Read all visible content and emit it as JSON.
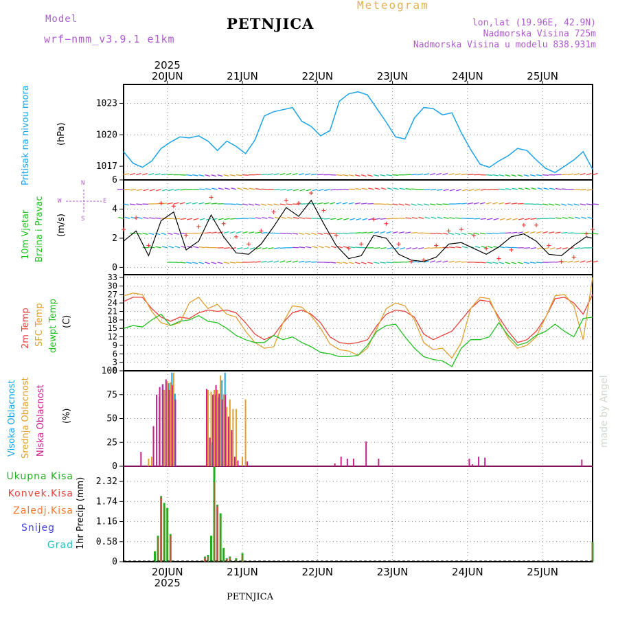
{
  "header": {
    "model_label": "Model",
    "model_name": "wrf−nmm_v3.9.1  e1km",
    "station": "PETNJICA",
    "chart_kind": "Meteogram",
    "lonlat": "lon,lat (19.96E, 42.9N)",
    "altitude": "Nadmorska Visina 725m",
    "model_altitude": "Nadmorska Visina u modelu 838.931m",
    "footer_station": "PETNJICA",
    "credit": "made by Angel"
  },
  "time_axis": {
    "year": "2025",
    "days": [
      "20JUN",
      "21JUN",
      "22JUN",
      "23JUN",
      "24JUN",
      "25JUN"
    ],
    "hours_per_day": 24,
    "start_hour_offset": -14,
    "end_hour_offset": 136
  },
  "colors": {
    "pressure": "#1aa3e8",
    "temp2m": "#e8413a",
    "sfc": "#e0a030",
    "dewpt": "#22c022",
    "wind_speed": "#000000",
    "gust": "#e8413a",
    "high_cloud": "#1aa3e8",
    "mid_cloud": "#e0a030",
    "low_cloud": "#cc1d8a",
    "total_precip": "#22b022",
    "conv_precip": "#e8413a",
    "frozen": "#f07a30",
    "snow": "#4444dd",
    "hail": "#22c0c0"
  },
  "panels": {
    "pressure": {
      "label": "Pritisak na nivou mora",
      "unit": "(hPa)",
      "ticks": [
        "1017",
        "1020",
        "1023"
      ]
    },
    "wind": {
      "label1": "10m Vjetar",
      "label2": "Brzina i Pravac",
      "unit": "(m/s)",
      "ticks": [
        "0",
        "2",
        "4",
        "6"
      ],
      "compass": {
        "n": "N",
        "s": "S",
        "w": "W",
        "e": "E"
      }
    },
    "temp": {
      "label1": "2m Temp",
      "label2": "SFC Temp",
      "label3": "dewpt Temp",
      "unit": "(C)",
      "ticks": [
        "0",
        "3",
        "6",
        "9",
        "12",
        "15",
        "18",
        "21",
        "24",
        "27",
        "30",
        "33"
      ]
    },
    "cloud": {
      "label1": "Visoka Oblacnost",
      "label2": "Srednja Oblacnost",
      "label3": "Niska Oblacnost",
      "unit": "(%)",
      "ticks": [
        "0",
        "25",
        "50",
        "75",
        "100"
      ]
    },
    "precip": {
      "legend": [
        "Ukupna Kisa",
        "Konvek.Kisa",
        "Zaledj.Kisa",
        "Snijeg",
        "Grad"
      ],
      "unit": "1hr Precip (mm)",
      "ticks": [
        "0",
        "0.58",
        "1.16",
        "1.74",
        "2.32"
      ]
    }
  },
  "chart_data": [
    {
      "type": "line",
      "title": "Pritisak na nivou mora",
      "ylabel": "(hPa)",
      "ylim": [
        1015.7,
        1024.8
      ],
      "x_unit": "hours since 20JUN 00",
      "series": [
        {
          "name": "Pritisak na nivou mora",
          "x": [
            -14,
            -11,
            -8,
            -5,
            -2,
            1,
            4,
            7,
            10,
            13,
            16,
            19,
            22,
            25,
            28,
            31,
            34,
            37,
            40,
            43,
            46,
            49,
            52,
            55,
            58,
            61,
            64,
            67,
            70,
            73,
            76,
            79,
            82,
            85,
            88,
            91,
            94,
            97,
            100,
            103,
            106,
            109,
            112,
            115,
            118,
            121,
            124,
            127,
            130,
            133,
            136
          ],
          "values": [
            1018.4,
            1017.3,
            1016.9,
            1017.5,
            1018.7,
            1019.3,
            1019.8,
            1019.7,
            1019.9,
            1019.4,
            1018.5,
            1019.4,
            1018.9,
            1018.2,
            1019.5,
            1021.8,
            1022.2,
            1022.4,
            1022.6,
            1021.3,
            1020.8,
            1019.9,
            1020.4,
            1023.2,
            1023.9,
            1024.1,
            1023.8,
            1022.5,
            1021.2,
            1019.8,
            1019.6,
            1021.6,
            1022.6,
            1022.5,
            1021.9,
            1022.1,
            1020.2,
            1018.6,
            1017.2,
            1016.9,
            1017.5,
            1018.0,
            1018.7,
            1018.5,
            1017.6,
            1016.8,
            1016.4,
            1017.0,
            1017.6,
            1018.4,
            1016.7
          ]
        }
      ]
    },
    {
      "type": "line",
      "title": "10m Vjetar Brzina i Pravac",
      "ylabel": "(m/s)",
      "ylim": [
        -0.5,
        6
      ],
      "x_unit": "hours since 20JUN 00",
      "series": [
        {
          "name": "Brzina",
          "x": [
            -14,
            -10,
            -6,
            -2,
            2,
            6,
            10,
            14,
            18,
            22,
            26,
            30,
            34,
            38,
            42,
            46,
            50,
            54,
            58,
            62,
            66,
            70,
            74,
            78,
            82,
            86,
            90,
            94,
            98,
            102,
            106,
            110,
            114,
            118,
            122,
            126,
            130,
            134,
            136
          ],
          "values": [
            1.8,
            2.5,
            0.8,
            3.2,
            3.8,
            1.2,
            1.8,
            3.6,
            2.1,
            1.0,
            0.9,
            1.6,
            2.8,
            4.1,
            3.5,
            4.6,
            3.0,
            1.5,
            0.6,
            0.8,
            2.2,
            2.0,
            0.9,
            0.5,
            0.4,
            0.7,
            1.6,
            1.7,
            1.3,
            0.9,
            1.4,
            2.1,
            2.3,
            1.8,
            0.9,
            0.8,
            1.5,
            2.1,
            2.0
          ]
        },
        {
          "name": "Udari",
          "x": [
            -14,
            -10,
            -6,
            -2,
            2,
            6,
            10,
            14,
            18,
            22,
            26,
            30,
            34,
            38,
            42,
            46,
            50,
            54,
            58,
            62,
            66,
            70,
            74,
            78,
            82,
            86,
            90,
            94,
            98,
            102,
            106,
            110,
            114,
            118,
            122,
            126,
            130,
            134,
            136
          ],
          "values": [
            2.6,
            3.4,
            1.5,
            4.4,
            4.2,
            2.2,
            2.8,
            4.8,
            3.0,
            2.1,
            1.6,
            2.5,
            3.8,
            4.6,
            4.4,
            5.1,
            3.9,
            2.2,
            1.3,
            1.6,
            3.3,
            3.0,
            1.6,
            0.4,
            0.5,
            1.5,
            2.5,
            2.6,
            2.2,
            1.3,
            0.6,
            1.2,
            2.9,
            2.9,
            1.5,
            0.4,
            0.7,
            2.3,
            2.6
          ]
        }
      ]
    },
    {
      "type": "line",
      "title": "2m / SFC / dewpt Temp",
      "ylabel": "(C)",
      "ylim": [
        0,
        34
      ],
      "x_unit": "hours since 20JUN 00",
      "series": [
        {
          "name": "2m Temp",
          "x": [
            -14,
            -11,
            -8,
            -5,
            -2,
            1,
            4,
            7,
            10,
            13,
            16,
            19,
            22,
            25,
            28,
            31,
            34,
            37,
            40,
            43,
            46,
            49,
            52,
            55,
            58,
            61,
            64,
            67,
            70,
            73,
            76,
            79,
            82,
            85,
            88,
            91,
            94,
            97,
            100,
            103,
            106,
            109,
            112,
            115,
            118,
            121,
            124,
            127,
            130,
            133,
            136
          ],
          "values": [
            24.5,
            26,
            26,
            22,
            19,
            17.5,
            19,
            18.5,
            20.5,
            21.5,
            21,
            21.5,
            20.5,
            17,
            13,
            11,
            12.5,
            17,
            20.5,
            21.5,
            20,
            17,
            12,
            10,
            9.5,
            10,
            11,
            16,
            20,
            21.5,
            21,
            19,
            13,
            11,
            12.5,
            14,
            18,
            22,
            25,
            24.5,
            19,
            14,
            10,
            11,
            14,
            19,
            25.5,
            26,
            24,
            20,
            27
          ]
        },
        {
          "name": "SFC Temp",
          "x": [
            -14,
            -11,
            -8,
            -5,
            -2,
            1,
            4,
            7,
            10,
            13,
            16,
            19,
            22,
            25,
            28,
            31,
            34,
            37,
            40,
            43,
            46,
            49,
            52,
            55,
            58,
            61,
            64,
            67,
            70,
            73,
            76,
            79,
            82,
            85,
            88,
            91,
            94,
            97,
            100,
            103,
            106,
            109,
            112,
            115,
            118,
            121,
            124,
            127,
            130,
            133,
            136
          ],
          "values": [
            26.5,
            27.5,
            27,
            21,
            17,
            16,
            17,
            24,
            26,
            22,
            23.5,
            20,
            19,
            14,
            10,
            8,
            8.5,
            17,
            23,
            22.5,
            19.5,
            15,
            9.5,
            7.5,
            7,
            5.5,
            8,
            15,
            22,
            24,
            23,
            18,
            10,
            7.5,
            8,
            4.5,
            10,
            22,
            26,
            25.5,
            18,
            11.5,
            8,
            9,
            12,
            19,
            26.5,
            27,
            23,
            11,
            33
          ]
        },
        {
          "name": "dewpt Temp",
          "x": [
            -14,
            -11,
            -8,
            -5,
            -2,
            1,
            4,
            7,
            10,
            13,
            16,
            19,
            22,
            25,
            28,
            31,
            34,
            37,
            40,
            43,
            46,
            49,
            52,
            55,
            58,
            61,
            64,
            67,
            70,
            73,
            76,
            79,
            82,
            85,
            88,
            91,
            94,
            97,
            100,
            103,
            106,
            109,
            112,
            115,
            118,
            121,
            124,
            127,
            130,
            133,
            136
          ],
          "values": [
            15,
            16,
            15.5,
            18,
            20,
            16,
            17.5,
            18,
            19.5,
            17.5,
            17,
            15,
            12.5,
            11,
            10,
            10,
            12.5,
            11,
            12,
            10,
            8.5,
            6.5,
            6,
            5,
            5,
            5.5,
            9,
            14,
            16,
            16.5,
            12,
            8,
            5,
            4,
            3.5,
            1.5,
            8,
            11,
            11,
            12,
            17,
            12.5,
            9,
            10,
            12.5,
            14,
            16.5,
            14,
            12,
            18.5,
            19
          ]
        }
      ]
    },
    {
      "type": "bar",
      "title": "Visoka / Srednja / Niska Oblacnost",
      "ylabel": "(%)",
      "ylim": [
        0,
        100
      ],
      "x_unit": "hours since 20JUN 00",
      "series": [
        {
          "name": "Visoka Oblacnost",
          "x": [
            -3,
            -2,
            0,
            1,
            2,
            14,
            15,
            16,
            17,
            18
          ],
          "values": [
            73,
            86,
            87,
            98,
            76,
            25,
            75,
            72,
            90,
            98
          ]
        },
        {
          "name": "Srednja Oblacnost",
          "x": [
            -6,
            -5,
            -1,
            0,
            1,
            2,
            13,
            14,
            15,
            16,
            17,
            18,
            19,
            20,
            21,
            22,
            24,
            25
          ],
          "values": [
            8,
            10,
            80,
            89,
            88,
            98,
            80,
            78,
            80,
            80,
            95,
            75,
            62,
            70,
            60,
            60,
            10,
            70
          ]
        },
        {
          "name": "Niska Oblacnost",
          "x": [
            -8,
            -4,
            -3,
            -2,
            -1,
            0,
            1,
            2,
            3,
            13,
            14,
            15,
            16,
            17,
            18,
            19,
            20,
            21,
            22,
            23,
            26,
            54,
            56,
            58,
            60,
            64,
            68,
            97,
            98,
            100,
            102,
            133
          ],
          "values": [
            15,
            42,
            75,
            83,
            86,
            91,
            80,
            85,
            70,
            81,
            30,
            75,
            85,
            76,
            70,
            75,
            52,
            38,
            10,
            6,
            5,
            3,
            10,
            8,
            8,
            26,
            8,
            8,
            2,
            10,
            9,
            7
          ]
        }
      ]
    },
    {
      "type": "bar",
      "title": "1hr Precip",
      "ylabel": "1hr Precip (mm)",
      "ylim": [
        0,
        2.76
      ],
      "x_unit": "hours since 20JUN 00",
      "series": [
        {
          "name": "Ukupna Kisa",
          "x": [
            -4,
            -3,
            -2,
            -1,
            0,
            1,
            12,
            13,
            14,
            15,
            16,
            17,
            18,
            19,
            20,
            22,
            24,
            136
          ],
          "values": [
            0.3,
            0.75,
            1.9,
            1.7,
            1.55,
            0.8,
            0.15,
            0.2,
            0.75,
            2.75,
            1.65,
            1.4,
            0.4,
            0.1,
            0.15,
            0.1,
            0.25,
            0.57
          ]
        },
        {
          "name": "Konvek.Kisa",
          "x": [
            -4,
            -3,
            -2,
            -1,
            0,
            1,
            12,
            13,
            14,
            15,
            16,
            17,
            18,
            19,
            20,
            22,
            24,
            136
          ],
          "values": [
            0.25,
            0.7,
            1.85,
            1.6,
            1.5,
            0.75,
            0.1,
            0.15,
            0.7,
            2.3,
            1.6,
            1.3,
            0.35,
            0.08,
            0.12,
            0.08,
            0.2,
            0.55
          ]
        }
      ]
    }
  ]
}
